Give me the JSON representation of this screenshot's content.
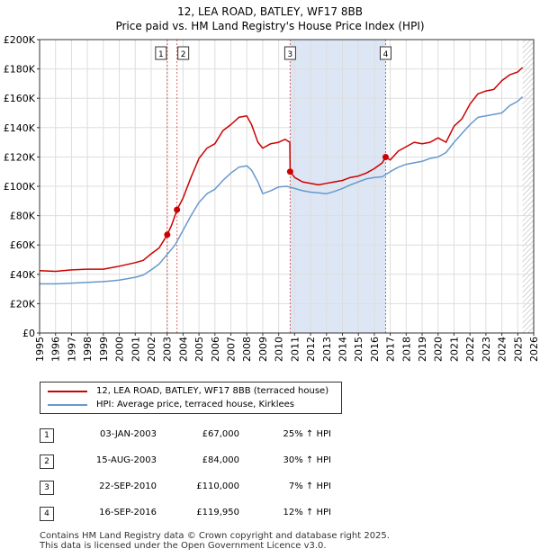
{
  "header": {
    "title": "12, LEA ROAD, BATLEY, WF17 8BB",
    "subtitle": "Price paid vs. HM Land Registry's House Price Index (HPI)"
  },
  "colors": {
    "property": "#cc0000",
    "hpi": "#6699cc",
    "shade": "#dde6f5",
    "future_hatch": "#999999",
    "marker_line": "#cc0000"
  },
  "chart_data": {
    "type": "line",
    "title": "Price paid vs. HM Land Registry's House Price Index (HPI)",
    "xlabel": "",
    "ylabel": "",
    "xlim": [
      1995,
      2026
    ],
    "ylim": [
      0,
      200000
    ],
    "y_ticks": [
      0,
      20000,
      40000,
      60000,
      80000,
      100000,
      120000,
      140000,
      160000,
      180000,
      200000
    ],
    "y_tick_labels": [
      "£0",
      "£20K",
      "£40K",
      "£60K",
      "£80K",
      "£100K",
      "£120K",
      "£140K",
      "£160K",
      "£180K",
      "£200K"
    ],
    "x_ticks": [
      1995,
      1996,
      1997,
      1998,
      1999,
      2000,
      2001,
      2002,
      2003,
      2004,
      2005,
      2006,
      2007,
      2008,
      2009,
      2010,
      2011,
      2012,
      2013,
      2014,
      2015,
      2016,
      2017,
      2018,
      2019,
      2020,
      2021,
      2022,
      2023,
      2024,
      2025,
      2026
    ],
    "x_tick_labels": [
      "1995",
      "1996",
      "1997",
      "1998",
      "1999",
      "2000",
      "2001",
      "2002",
      "2003",
      "2004",
      "2005",
      "2006",
      "2007",
      "2008",
      "2009",
      "2010",
      "2011",
      "2012",
      "2013",
      "2014",
      "2015",
      "2016",
      "2017",
      "2018",
      "2019",
      "2020",
      "2021",
      "2022",
      "2023",
      "2024",
      "2025",
      "2026"
    ],
    "grid": true,
    "shaded_period": [
      2010.72,
      2016.71
    ],
    "future_from": 2025.3,
    "series": [
      {
        "name": "12, LEA ROAD, BATLEY, WF17 8BB (terraced house)",
        "color": "#cc0000",
        "x": [
          1995,
          1996,
          1997,
          1998,
          1999,
          2000,
          2001,
          2001.5,
          2002,
          2002.5,
          2003.01,
          2003.3,
          2003.62,
          2004,
          2004.5,
          2005,
          2005.5,
          2006,
          2006.5,
          2007,
          2007.5,
          2008,
          2008.3,
          2008.7,
          2009,
          2009.5,
          2010,
          2010.4,
          2010.7,
          2010.72,
          2011,
          2011.5,
          2012,
          2012.5,
          2013,
          2013.5,
          2014,
          2014.5,
          2015,
          2015.5,
          2016,
          2016.5,
          2016.71,
          2017,
          2017.5,
          2018,
          2018.5,
          2019,
          2019.5,
          2020,
          2020.5,
          2021,
          2021.5,
          2022,
          2022.5,
          2023,
          2023.5,
          2024,
          2024.5,
          2025,
          2025.3
        ],
        "y": [
          42500,
          42000,
          43000,
          43500,
          43500,
          45500,
          48000,
          49500,
          54000,
          58000,
          67000,
          74000,
          84000,
          92000,
          106000,
          119000,
          126000,
          129000,
          138000,
          142000,
          147000,
          148000,
          142000,
          130000,
          126000,
          129000,
          130000,
          132000,
          130000,
          110000,
          106000,
          103000,
          102000,
          101000,
          102000,
          103000,
          104000,
          106000,
          107000,
          109000,
          112000,
          116000,
          119950,
          118000,
          124000,
          127000,
          130000,
          129000,
          130000,
          133000,
          130000,
          141000,
          146000,
          156000,
          163000,
          165000,
          166000,
          172000,
          176000,
          178000,
          181000
        ]
      },
      {
        "name": "HPI: Average price, terraced house, Kirklees",
        "color": "#6699cc",
        "x": [
          1995,
          1996,
          1997,
          1998,
          1999,
          2000,
          2001,
          2001.5,
          2002,
          2002.5,
          2003,
          2003.5,
          2004,
          2004.5,
          2005,
          2005.5,
          2006,
          2006.5,
          2007,
          2007.5,
          2008,
          2008.3,
          2008.7,
          2009,
          2009.5,
          2010,
          2010.5,
          2011,
          2011.5,
          2012,
          2012.5,
          2013,
          2013.5,
          2014,
          2014.5,
          2015,
          2015.5,
          2016,
          2016.5,
          2017,
          2017.5,
          2018,
          2018.5,
          2019,
          2019.5,
          2020,
          2020.5,
          2021,
          2021.5,
          2022,
          2022.5,
          2023,
          2023.5,
          2024,
          2024.5,
          2025,
          2025.3
        ],
        "y": [
          33500,
          33500,
          34000,
          34500,
          35000,
          36000,
          38000,
          39500,
          43000,
          47000,
          53500,
          60000,
          70000,
          80000,
          89000,
          95000,
          98000,
          104000,
          109000,
          113000,
          114000,
          111000,
          103000,
          95000,
          97000,
          99500,
          100000,
          98500,
          97000,
          96000,
          95500,
          95000,
          96500,
          98500,
          101000,
          103000,
          105000,
          106000,
          106500,
          110000,
          113000,
          115000,
          116000,
          117000,
          119000,
          120000,
          123000,
          130000,
          136000,
          142000,
          147000,
          148000,
          149000,
          150000,
          155000,
          158000,
          161000
        ]
      }
    ],
    "sale_markers": [
      {
        "label": "1",
        "x": 2003.01,
        "y": 67000
      },
      {
        "label": "2",
        "x": 2003.62,
        "y": 84000
      },
      {
        "label": "3",
        "x": 2010.72,
        "y": 110000
      },
      {
        "label": "4",
        "x": 2016.71,
        "y": 119950
      }
    ]
  },
  "legend": {
    "items": [
      {
        "label": "12, LEA ROAD, BATLEY, WF17 8BB (terraced house)"
      },
      {
        "label": "HPI: Average price, terraced house, Kirklees"
      }
    ]
  },
  "sales": [
    {
      "num": "1",
      "date": "03-JAN-2003",
      "price": "£67,000",
      "hpi": "25% ↑ HPI"
    },
    {
      "num": "2",
      "date": "15-AUG-2003",
      "price": "£84,000",
      "hpi": "30% ↑ HPI"
    },
    {
      "num": "3",
      "date": "22-SEP-2010",
      "price": "£110,000",
      "hpi": "7% ↑ HPI"
    },
    {
      "num": "4",
      "date": "16-SEP-2016",
      "price": "£119,950",
      "hpi": "12% ↑ HPI"
    }
  ],
  "footer": {
    "line1": "Contains HM Land Registry data © Crown copyright and database right 2025.",
    "line2": "This data is licensed under the Open Government Licence v3.0."
  }
}
